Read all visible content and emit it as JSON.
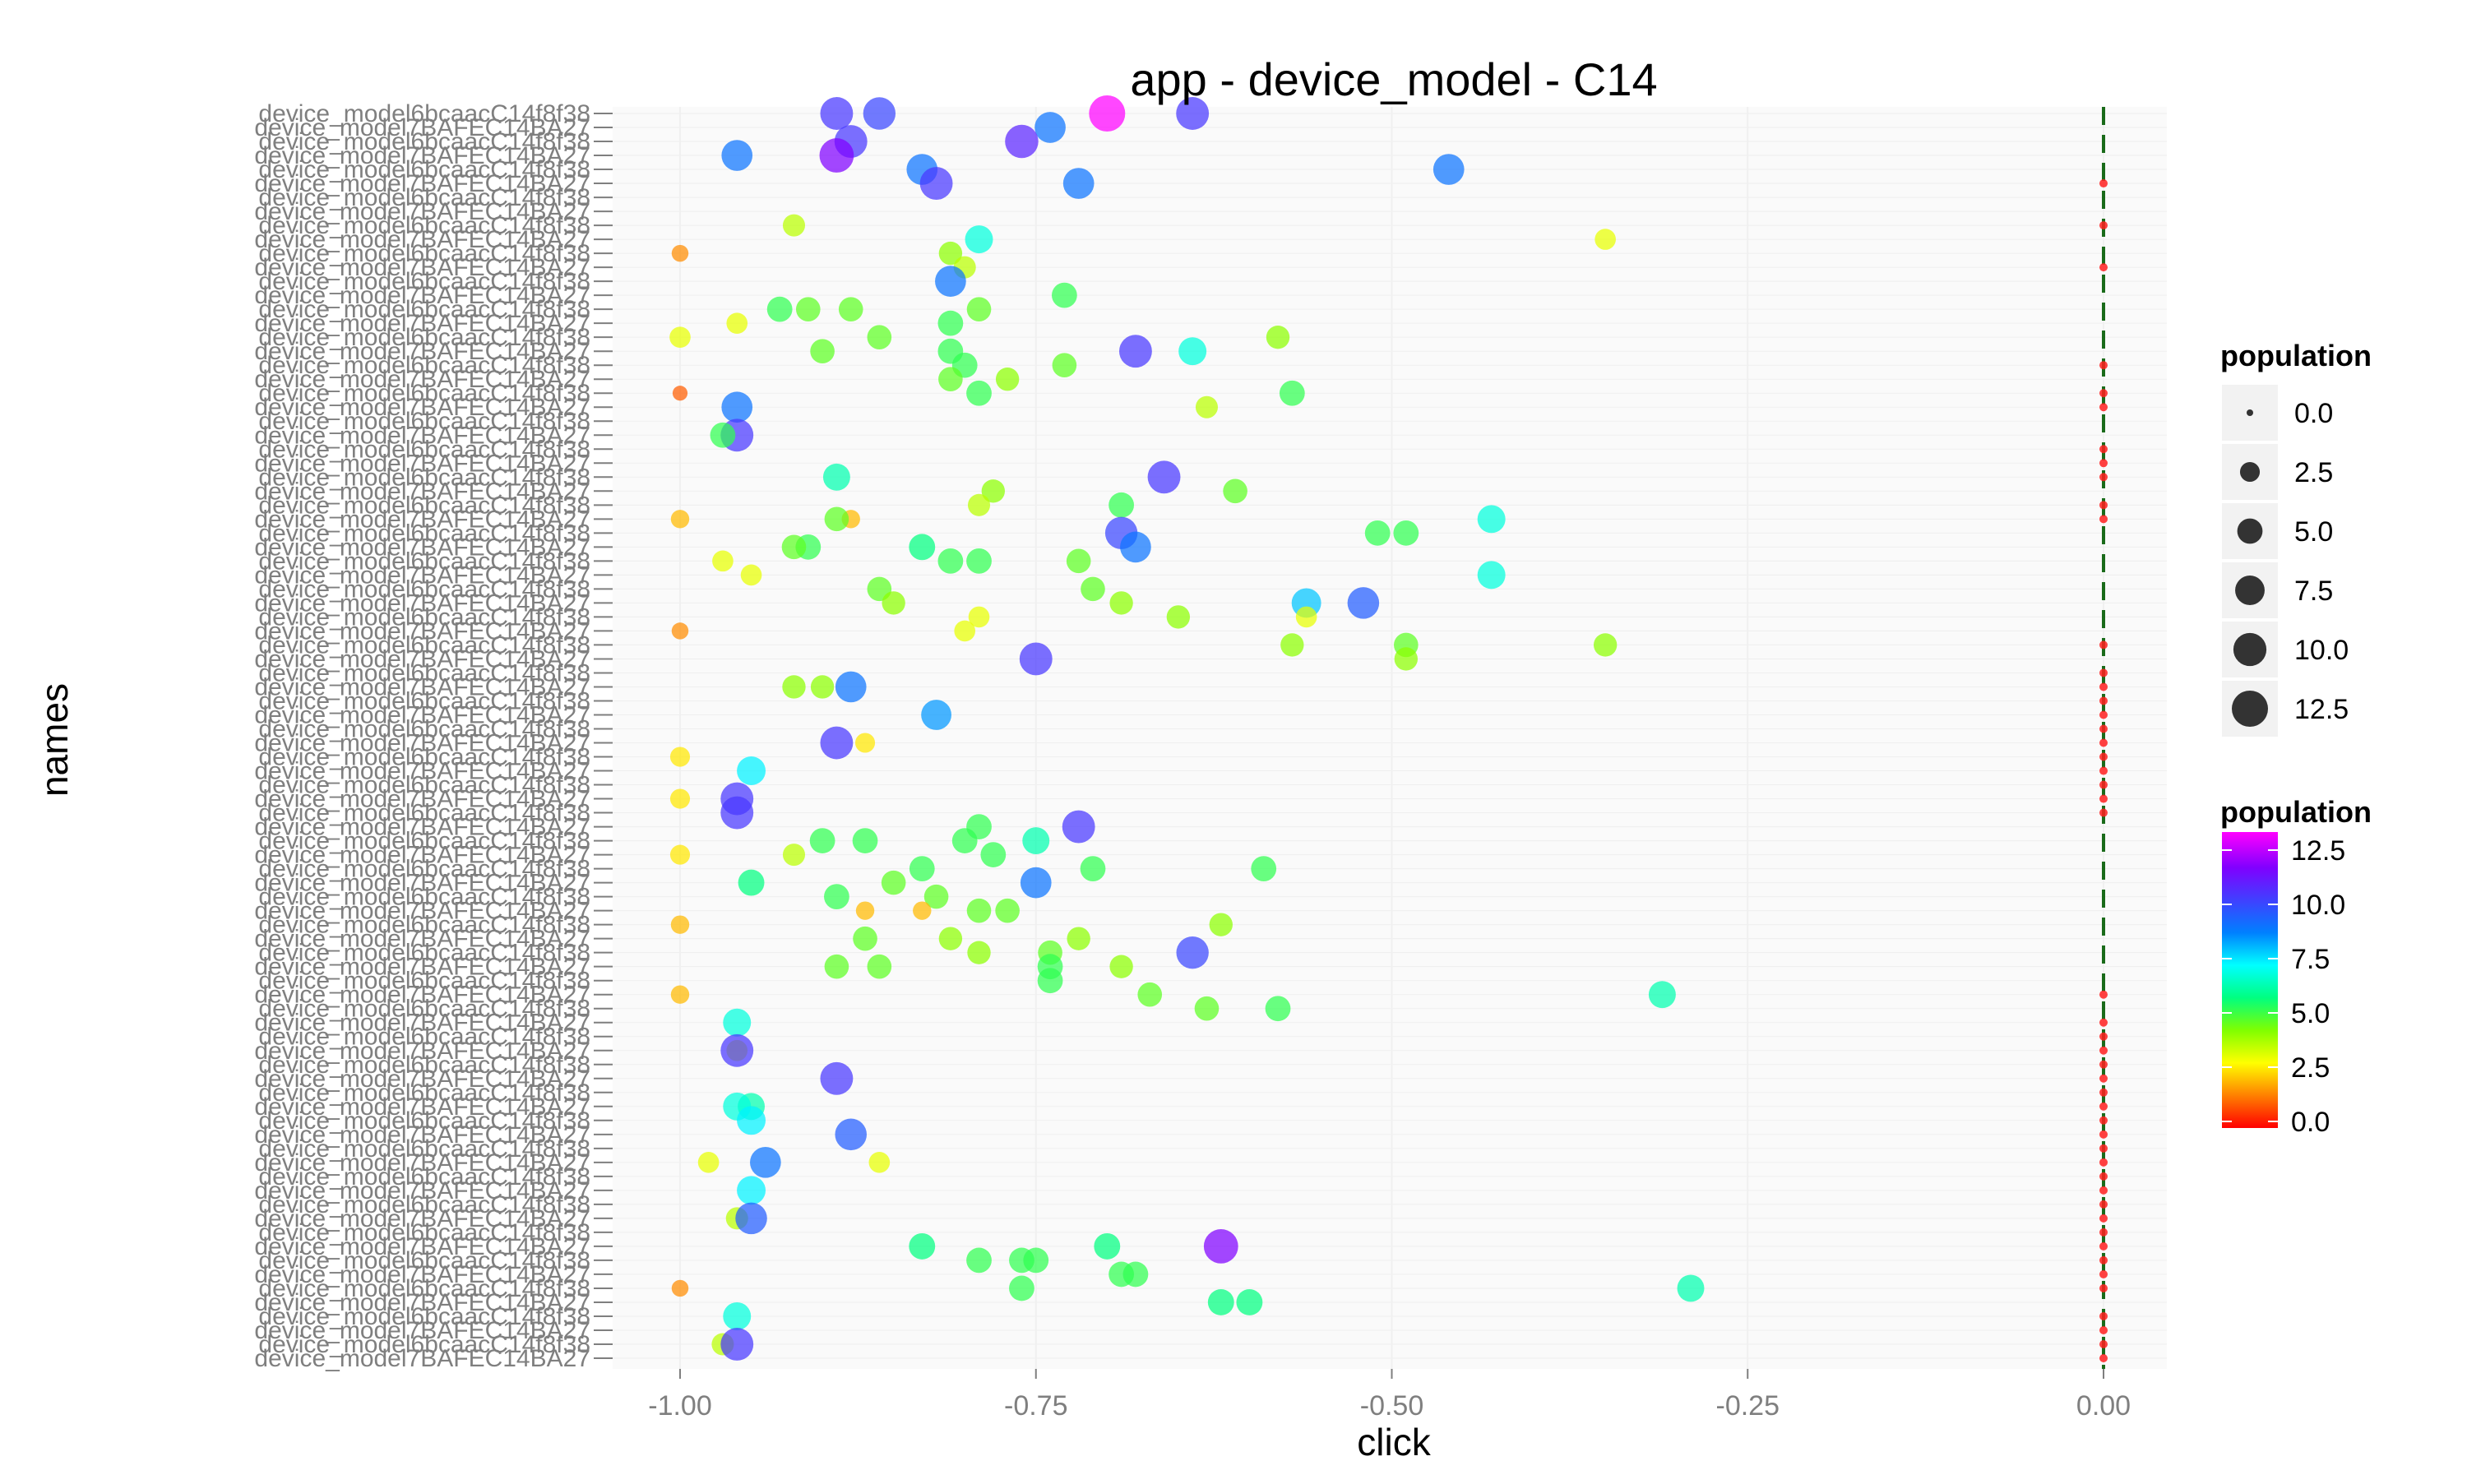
{
  "chart_data": {
    "type": "scatter",
    "title": "app - device_model - C14",
    "xlabel": "click",
    "ylabel": "names",
    "xlim": [
      -1.05,
      0.1
    ],
    "x_ticks": [
      -1.0,
      -0.75,
      -0.5,
      -0.25,
      0.0
    ],
    "x_tick_labels": [
      "-1.00",
      "-0.75",
      "-0.50",
      "-0.25",
      "0.00"
    ],
    "y_tick_label_prefix": "device_model",
    "y_tick_labels_visible": [
      "device_model7BAFEC14BA27",
      "device_model6bcaacC14f8f38"
    ],
    "grid": true,
    "reference_line": {
      "x": 0.0,
      "style": "dashed",
      "color": "#1a6b1a"
    },
    "size_legend": {
      "title": "population",
      "values": [
        "0.0",
        "2.5",
        "5.0",
        "7.5",
        "10.0",
        "12.5"
      ]
    },
    "color_legend": {
      "title": "population",
      "labels": [
        "12.5",
        "10.0",
        "7.5",
        "5.0",
        "2.5",
        "0.0"
      ],
      "colors": [
        "#ff0000",
        "#ff8000",
        "#ffff00",
        "#80ff00",
        "#00ff80",
        "#00ffff",
        "#0080ff",
        "#4040ff",
        "#8000ff",
        "#ff00ff"
      ]
    },
    "points": [
      {
        "x": -0.89,
        "rank": 1,
        "pop": 9.8
      },
      {
        "x": -0.86,
        "rank": 1,
        "pop": 9.5
      },
      {
        "x": -0.7,
        "rank": 1,
        "pop": 12.5
      },
      {
        "x": -0.64,
        "rank": 1,
        "pop": 9.8
      },
      {
        "x": -0.74,
        "rank": 2,
        "pop": 8.5
      },
      {
        "x": -0.88,
        "rank": 3,
        "pop": 9.8
      },
      {
        "x": -0.76,
        "rank": 3,
        "pop": 10.2
      },
      {
        "x": -0.96,
        "rank": 4,
        "pop": 8.5
      },
      {
        "x": -0.89,
        "rank": 4,
        "pop": 11.0
      },
      {
        "x": -0.83,
        "rank": 5,
        "pop": 8.5
      },
      {
        "x": -0.46,
        "rank": 5,
        "pop": 8.5
      },
      {
        "x": -0.82,
        "rank": 6,
        "pop": 9.8
      },
      {
        "x": -0.72,
        "rank": 6,
        "pop": 8.5
      },
      {
        "x": -0.92,
        "rank": 9,
        "pop": 3.5
      },
      {
        "x": -0.79,
        "rank": 10,
        "pop": 6.5
      },
      {
        "x": -0.35,
        "rank": 10,
        "pop": 3.0
      },
      {
        "x": -1.0,
        "rank": 11,
        "pop": 1.5
      },
      {
        "x": -0.81,
        "rank": 11,
        "pop": 4.0
      },
      {
        "x": -0.8,
        "rank": 12,
        "pop": 3.5
      },
      {
        "x": -0.81,
        "rank": 13,
        "pop": 8.5
      },
      {
        "x": -0.73,
        "rank": 14,
        "pop": 5.0
      },
      {
        "x": -0.91,
        "rank": 15,
        "pop": 4.5
      },
      {
        "x": -0.93,
        "rank": 15,
        "pop": 5.0
      },
      {
        "x": -0.88,
        "rank": 15,
        "pop": 4.5
      },
      {
        "x": -0.79,
        "rank": 15,
        "pop": 4.5
      },
      {
        "x": -0.81,
        "rank": 16,
        "pop": 5.0
      },
      {
        "x": -0.96,
        "rank": 16,
        "pop": 3.0
      },
      {
        "x": -1.0,
        "rank": 17,
        "pop": 3.0
      },
      {
        "x": -0.86,
        "rank": 17,
        "pop": 4.5
      },
      {
        "x": -0.58,
        "rank": 17,
        "pop": 4.0
      },
      {
        "x": -0.9,
        "rank": 18,
        "pop": 4.5
      },
      {
        "x": -0.81,
        "rank": 18,
        "pop": 5.0
      },
      {
        "x": -0.68,
        "rank": 18,
        "pop": 9.8
      },
      {
        "x": -0.64,
        "rank": 18,
        "pop": 6.5
      },
      {
        "x": -0.8,
        "rank": 19,
        "pop": 5.0
      },
      {
        "x": -0.73,
        "rank": 19,
        "pop": 4.5
      },
      {
        "x": -0.77,
        "rank": 20,
        "pop": 4.0
      },
      {
        "x": -0.81,
        "rank": 20,
        "pop": 4.5
      },
      {
        "x": -1.0,
        "rank": 21,
        "pop": 1.0
      },
      {
        "x": -0.79,
        "rank": 21,
        "pop": 5.0
      },
      {
        "x": -0.57,
        "rank": 21,
        "pop": 5.0
      },
      {
        "x": -0.96,
        "rank": 22,
        "pop": 8.5
      },
      {
        "x": -0.63,
        "rank": 22,
        "pop": 3.5
      },
      {
        "x": -0.96,
        "rank": 24,
        "pop": 9.8
      },
      {
        "x": -0.97,
        "rank": 24,
        "pop": 5.0
      },
      {
        "x": -0.66,
        "rank": 27,
        "pop": 9.8
      },
      {
        "x": -0.89,
        "rank": 27,
        "pop": 6.0
      },
      {
        "x": -0.78,
        "rank": 28,
        "pop": 4.0
      },
      {
        "x": -0.61,
        "rank": 28,
        "pop": 4.5
      },
      {
        "x": -0.69,
        "rank": 29,
        "pop": 5.0
      },
      {
        "x": -0.79,
        "rank": 29,
        "pop": 3.5
      },
      {
        "x": -1.0,
        "rank": 30,
        "pop": 2.0
      },
      {
        "x": -0.88,
        "rank": 30,
        "pop": 2.0
      },
      {
        "x": -0.43,
        "rank": 30,
        "pop": 6.5
      },
      {
        "x": -0.89,
        "rank": 30,
        "pop": 4.5
      },
      {
        "x": -0.69,
        "rank": 31,
        "pop": 9.5
      },
      {
        "x": -0.51,
        "rank": 31,
        "pop": 5.0
      },
      {
        "x": -0.49,
        "rank": 31,
        "pop": 5.0
      },
      {
        "x": -0.91,
        "rank": 32,
        "pop": 5.0
      },
      {
        "x": -0.83,
        "rank": 32,
        "pop": 5.5
      },
      {
        "x": -0.68,
        "rank": 32,
        "pop": 8.5
      },
      {
        "x": -0.92,
        "rank": 32,
        "pop": 4.5
      },
      {
        "x": -0.81,
        "rank": 33,
        "pop": 5.0
      },
      {
        "x": -0.79,
        "rank": 33,
        "pop": 5.0
      },
      {
        "x": -0.72,
        "rank": 33,
        "pop": 4.5
      },
      {
        "x": -0.97,
        "rank": 33,
        "pop": 3.0
      },
      {
        "x": -0.95,
        "rank": 34,
        "pop": 3.0
      },
      {
        "x": -0.43,
        "rank": 34,
        "pop": 6.5
      },
      {
        "x": -0.86,
        "rank": 35,
        "pop": 4.5
      },
      {
        "x": -0.71,
        "rank": 35,
        "pop": 4.5
      },
      {
        "x": -0.56,
        "rank": 36,
        "pop": 7.5
      },
      {
        "x": -0.52,
        "rank": 36,
        "pop": 9.0
      },
      {
        "x": -0.85,
        "rank": 36,
        "pop": 4.0
      },
      {
        "x": -0.69,
        "rank": 36,
        "pop": 4.0
      },
      {
        "x": -0.65,
        "rank": 37,
        "pop": 4.0
      },
      {
        "x": -0.79,
        "rank": 37,
        "pop": 3.0
      },
      {
        "x": -0.56,
        "rank": 37,
        "pop": 3.0
      },
      {
        "x": -1.0,
        "rank": 38,
        "pop": 1.5
      },
      {
        "x": -0.8,
        "rank": 38,
        "pop": 3.0
      },
      {
        "x": -0.57,
        "rank": 39,
        "pop": 4.0
      },
      {
        "x": -0.49,
        "rank": 39,
        "pop": 4.5
      },
      {
        "x": -0.35,
        "rank": 39,
        "pop": 4.0
      },
      {
        "x": -0.75,
        "rank": 40,
        "pop": 9.8
      },
      {
        "x": -0.49,
        "rank": 40,
        "pop": 4.0
      },
      {
        "x": -0.88,
        "rank": 42,
        "pop": 8.5
      },
      {
        "x": -0.9,
        "rank": 42,
        "pop": 4.0
      },
      {
        "x": -0.92,
        "rank": 42,
        "pop": 4.0
      },
      {
        "x": -0.82,
        "rank": 44,
        "pop": 8.0
      },
      {
        "x": -0.89,
        "rank": 46,
        "pop": 9.8
      },
      {
        "x": -0.87,
        "rank": 46,
        "pop": 2.5
      },
      {
        "x": -1.0,
        "rank": 47,
        "pop": 2.5
      },
      {
        "x": -0.95,
        "rank": 48,
        "pop": 7.0
      },
      {
        "x": -1.0,
        "rank": 50,
        "pop": 2.5
      },
      {
        "x": -0.96,
        "rank": 50,
        "pop": 9.8
      },
      {
        "x": -0.96,
        "rank": 51,
        "pop": 9.8
      },
      {
        "x": -0.79,
        "rank": 52,
        "pop": 5.0
      },
      {
        "x": -0.72,
        "rank": 52,
        "pop": 9.8
      },
      {
        "x": -0.9,
        "rank": 53,
        "pop": 5.0
      },
      {
        "x": -0.87,
        "rank": 53,
        "pop": 5.0
      },
      {
        "x": -0.8,
        "rank": 53,
        "pop": 5.0
      },
      {
        "x": -0.75,
        "rank": 53,
        "pop": 6.0
      },
      {
        "x": -1.0,
        "rank": 54,
        "pop": 2.5
      },
      {
        "x": -0.92,
        "rank": 54,
        "pop": 3.5
      },
      {
        "x": -0.78,
        "rank": 54,
        "pop": 5.0
      },
      {
        "x": -0.59,
        "rank": 55,
        "pop": 5.0
      },
      {
        "x": -0.83,
        "rank": 55,
        "pop": 5.0
      },
      {
        "x": -0.71,
        "rank": 55,
        "pop": 5.0
      },
      {
        "x": -0.75,
        "rank": 56,
        "pop": 8.5
      },
      {
        "x": -0.95,
        "rank": 56,
        "pop": 5.5
      },
      {
        "x": -0.85,
        "rank": 56,
        "pop": 4.5
      },
      {
        "x": -0.89,
        "rank": 57,
        "pop": 5.0
      },
      {
        "x": -0.82,
        "rank": 57,
        "pop": 4.5
      },
      {
        "x": -0.79,
        "rank": 58,
        "pop": 4.5
      },
      {
        "x": -0.77,
        "rank": 58,
        "pop": 4.5
      },
      {
        "x": -0.87,
        "rank": 58,
        "pop": 2.0
      },
      {
        "x": -0.83,
        "rank": 58,
        "pop": 2.0
      },
      {
        "x": -1.0,
        "rank": 59,
        "pop": 2.0
      },
      {
        "x": -0.87,
        "rank": 60,
        "pop": 4.5
      },
      {
        "x": -0.62,
        "rank": 59,
        "pop": 4.0
      },
      {
        "x": -0.64,
        "rank": 61,
        "pop": 9.5
      },
      {
        "x": -0.81,
        "rank": 60,
        "pop": 4.0
      },
      {
        "x": -0.74,
        "rank": 61,
        "pop": 4.5
      },
      {
        "x": -0.72,
        "rank": 60,
        "pop": 4.0
      },
      {
        "x": -0.79,
        "rank": 61,
        "pop": 4.0
      },
      {
        "x": -0.89,
        "rank": 62,
        "pop": 4.5
      },
      {
        "x": -0.86,
        "rank": 62,
        "pop": 4.5
      },
      {
        "x": -0.74,
        "rank": 62,
        "pop": 5.0
      },
      {
        "x": -0.69,
        "rank": 62,
        "pop": 4.0
      },
      {
        "x": -0.74,
        "rank": 63,
        "pop": 5.0
      },
      {
        "x": -1.0,
        "rank": 64,
        "pop": 2.0
      },
      {
        "x": -0.67,
        "rank": 64,
        "pop": 4.5
      },
      {
        "x": -0.63,
        "rank": 65,
        "pop": 4.5
      },
      {
        "x": -0.58,
        "rank": 65,
        "pop": 5.0
      },
      {
        "x": -0.31,
        "rank": 64,
        "pop": 6.0
      },
      {
        "x": -0.96,
        "rank": 66,
        "pop": 6.5
      },
      {
        "x": -0.96,
        "rank": 68,
        "pop": 3.0
      },
      {
        "x": -0.96,
        "rank": 68,
        "pop": 9.8
      },
      {
        "x": -0.89,
        "rank": 70,
        "pop": 9.8
      },
      {
        "x": -0.95,
        "rank": 72,
        "pop": 6.0
      },
      {
        "x": -0.96,
        "rank": 72,
        "pop": 6.5
      },
      {
        "x": -0.95,
        "rank": 73,
        "pop": 7.0
      },
      {
        "x": -0.88,
        "rank": 74,
        "pop": 9.0
      },
      {
        "x": -0.94,
        "rank": 76,
        "pop": 8.5
      },
      {
        "x": -0.98,
        "rank": 76,
        "pop": 3.0
      },
      {
        "x": -0.86,
        "rank": 76,
        "pop": 3.0
      },
      {
        "x": -0.95,
        "rank": 78,
        "pop": 7.0
      },
      {
        "x": -0.96,
        "rank": 80,
        "pop": 3.5
      },
      {
        "x": -0.95,
        "rank": 80,
        "pop": 9.0
      },
      {
        "x": -0.62,
        "rank": 82,
        "pop": 11.0
      },
      {
        "x": -0.83,
        "rank": 82,
        "pop": 5.5
      },
      {
        "x": -0.79,
        "rank": 83,
        "pop": 5.0
      },
      {
        "x": -0.76,
        "rank": 83,
        "pop": 5.0
      },
      {
        "x": -0.75,
        "rank": 83,
        "pop": 5.0
      },
      {
        "x": -0.7,
        "rank": 82,
        "pop": 5.5
      },
      {
        "x": -0.69,
        "rank": 84,
        "pop": 5.0
      },
      {
        "x": -0.68,
        "rank": 84,
        "pop": 5.0
      },
      {
        "x": -0.76,
        "rank": 85,
        "pop": 5.0
      },
      {
        "x": -1.0,
        "rank": 85,
        "pop": 1.5
      },
      {
        "x": -0.96,
        "rank": 87,
        "pop": 6.5
      },
      {
        "x": -0.62,
        "rank": 86,
        "pop": 5.5
      },
      {
        "x": -0.6,
        "rank": 86,
        "pop": 5.5
      },
      {
        "x": -0.29,
        "rank": 85,
        "pop": 6.0
      },
      {
        "x": -0.97,
        "rank": 89,
        "pop": 3.5
      },
      {
        "x": -0.96,
        "rank": 89,
        "pop": 9.8
      }
    ],
    "zero_markers": [
      {
        "x": 0.0,
        "rank": 6
      },
      {
        "x": 0.0,
        "rank": 9
      },
      {
        "x": 0.0,
        "rank": 12
      },
      {
        "x": 0.0,
        "rank": 19
      },
      {
        "x": 0.0,
        "rank": 21
      },
      {
        "x": 0.0,
        "rank": 22
      },
      {
        "x": 0.0,
        "rank": 25
      },
      {
        "x": 0.0,
        "rank": 26
      },
      {
        "x": 0.0,
        "rank": 27
      },
      {
        "x": 0.0,
        "rank": 29
      },
      {
        "x": 0.0,
        "rank": 30
      },
      {
        "x": 0.0,
        "rank": 39
      },
      {
        "x": 0.0,
        "rank": 41
      },
      {
        "x": 0.0,
        "rank": 42
      },
      {
        "x": 0.0,
        "rank": 43
      },
      {
        "x": 0.0,
        "rank": 44
      },
      {
        "x": 0.0,
        "rank": 45
      },
      {
        "x": 0.0,
        "rank": 46
      },
      {
        "x": 0.0,
        "rank": 47
      },
      {
        "x": 0.0,
        "rank": 48
      },
      {
        "x": 0.0,
        "rank": 49
      },
      {
        "x": 0.0,
        "rank": 50
      },
      {
        "x": 0.0,
        "rank": 51
      },
      {
        "x": 0.0,
        "rank": 64
      },
      {
        "x": 0.0,
        "rank": 66
      },
      {
        "x": 0.0,
        "rank": 67
      },
      {
        "x": 0.0,
        "rank": 68
      },
      {
        "x": 0.0,
        "rank": 69
      },
      {
        "x": 0.0,
        "rank": 70
      },
      {
        "x": 0.0,
        "rank": 71
      },
      {
        "x": 0.0,
        "rank": 72
      },
      {
        "x": 0.0,
        "rank": 73
      },
      {
        "x": 0.0,
        "rank": 74
      },
      {
        "x": 0.0,
        "rank": 75
      },
      {
        "x": 0.0,
        "rank": 76
      },
      {
        "x": 0.0,
        "rank": 77
      },
      {
        "x": 0.0,
        "rank": 78
      },
      {
        "x": 0.0,
        "rank": 79
      },
      {
        "x": 0.0,
        "rank": 80
      },
      {
        "x": 0.0,
        "rank": 81
      },
      {
        "x": 0.0,
        "rank": 82
      },
      {
        "x": 0.0,
        "rank": 83
      },
      {
        "x": 0.0,
        "rank": 84
      },
      {
        "x": 0.0,
        "rank": 85
      },
      {
        "x": 0.0,
        "rank": 87
      },
      {
        "x": 0.0,
        "rank": 88
      },
      {
        "x": 0.0,
        "rank": 89
      },
      {
        "x": 0.0,
        "rank": 90
      }
    ]
  }
}
